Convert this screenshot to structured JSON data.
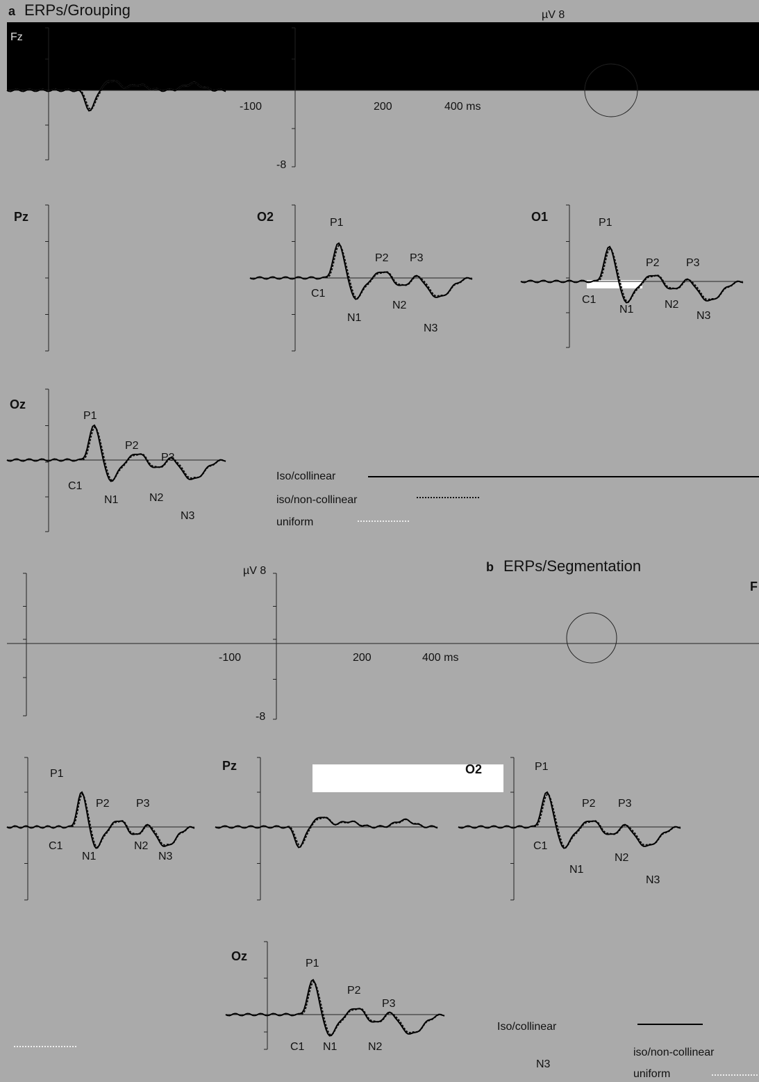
{
  "panel_a": {
    "letter": "a",
    "title": "ERPs/Grouping",
    "axis": {
      "y_max": "µV 8",
      "y_min": "-8",
      "x_ticks": [
        "-100",
        "200",
        "400 ms"
      ]
    },
    "electrodes": {
      "fz": "Fz",
      "pz": "Pz",
      "o2": "O2",
      "o1": "O1",
      "oz": "Oz"
    },
    "o2_peaks": [
      "P1",
      "P2",
      "P3",
      "C1",
      "N1",
      "N2",
      "N3"
    ],
    "o1_peaks": [
      "P1",
      "P2",
      "P3",
      "C1",
      "N1",
      "N2",
      "N3"
    ],
    "oz_peaks": [
      "P1",
      "P2",
      "P3",
      "C1",
      "N1",
      "N2",
      "N3"
    ],
    "legend": [
      "Iso/collinear",
      "iso/non-collinear",
      "uniform"
    ]
  },
  "panel_b": {
    "letter": "b",
    "title": "ERPs/Segmentation",
    "axis": {
      "y_max": "µV 8",
      "y_min": "-8",
      "x_ticks": [
        "-100",
        "200",
        "400 ms"
      ]
    },
    "electrodes": {
      "f": "F",
      "pz": "Pz",
      "o2": "O2",
      "oz": "Oz"
    },
    "left_peaks": [
      "P1",
      "P2",
      "P3",
      "C1",
      "N1",
      "N2",
      "N3"
    ],
    "right_peaks": [
      "P1",
      "P2",
      "P3",
      "C1",
      "N1",
      "N2",
      "N3"
    ],
    "oz_peaks": [
      "P1",
      "P2",
      "P3",
      "C1",
      "N1",
      "N2",
      "N3"
    ],
    "legend": [
      "Iso/collinear",
      "iso/non-collinear",
      "uniform"
    ]
  }
}
